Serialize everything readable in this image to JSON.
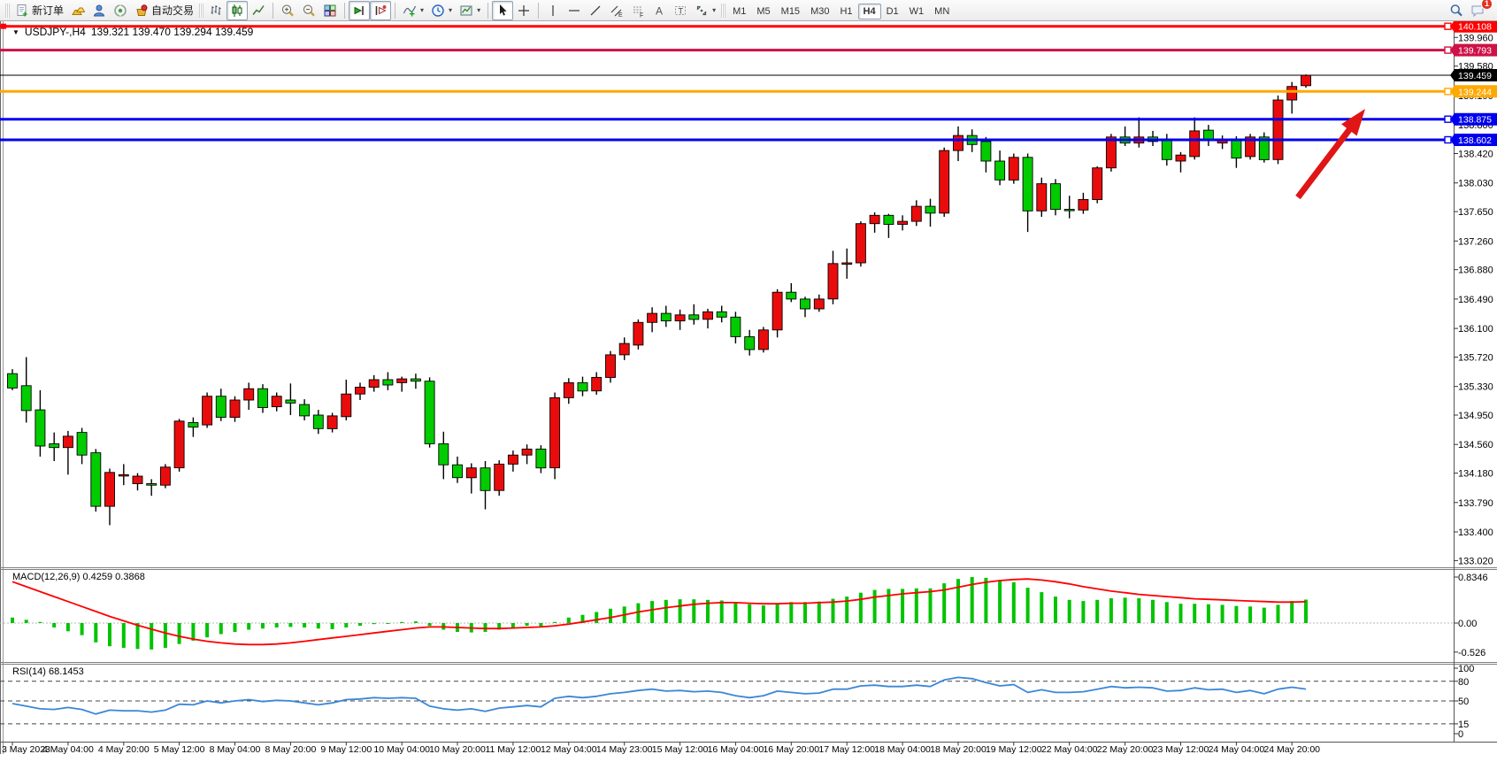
{
  "toolbar": {
    "new_order": "新订单",
    "auto_trading": "自动交易",
    "timeframes": [
      "M1",
      "M5",
      "M15",
      "M30",
      "H1",
      "H4",
      "D1",
      "W1",
      "MN"
    ],
    "active_timeframe": "H4",
    "notification_count": "1"
  },
  "chart_header": {
    "symbol": "USDJPY-,H4",
    "ohlc": "139.321 139.470 139.294 139.459"
  },
  "indicator_labels": {
    "macd": "MACD(12,26,9) 0.4259 0.3868",
    "rsi": "RSI(14) 68.1453"
  },
  "price_scale_ticks": [
    "139.960",
    "139.580",
    "139.190",
    "138.800",
    "138.420",
    "138.030",
    "137.650",
    "137.260",
    "136.880",
    "136.490",
    "136.100",
    "135.720",
    "135.330",
    "134.950",
    "134.560",
    "134.180",
    "133.790",
    "133.400",
    "133.020"
  ],
  "macd_scale": [
    "0.8346",
    "0.00",
    "-0.526"
  ],
  "rsi_scale": [
    "100",
    "80",
    "50",
    "15",
    "0"
  ],
  "rsi_levels": [
    80,
    50,
    15
  ],
  "price_lines": [
    {
      "label": "140.108",
      "price": 140.108,
      "color": "#ff0000",
      "width": 3,
      "handle": true,
      "current": false
    },
    {
      "label": "139.793",
      "price": 139.793,
      "color": "#ce1146",
      "width": 3,
      "handle": true,
      "current": false
    },
    {
      "label": "139.459",
      "price": 139.459,
      "color": "#000000",
      "width": 1,
      "handle": false,
      "current": true
    },
    {
      "label": "139.244",
      "price": 139.244,
      "color": "#ffa800",
      "width": 3,
      "handle": true,
      "current": false
    },
    {
      "label": "138.875",
      "price": 138.875,
      "color": "#0000ee",
      "width": 3,
      "handle": true,
      "current": false
    },
    {
      "label": "138.602",
      "price": 138.602,
      "color": "#0000ee",
      "width": 3,
      "handle": true,
      "current": false
    }
  ],
  "time_axis": [
    "3 May 2023",
    "4 May 04:00",
    "4 May 20:00",
    "5 May 12:00",
    "8 May 04:00",
    "8 May 20:00",
    "9 May 12:00",
    "10 May 04:00",
    "10 May 20:00",
    "11 May 12:00",
    "12 May 04:00",
    "14 May 23:00",
    "15 May 12:00",
    "16 May 04:00",
    "16 May 20:00",
    "17 May 12:00",
    "18 May 04:00",
    "18 May 20:00",
    "19 May 12:00",
    "22 May 04:00",
    "22 May 20:00",
    "23 May 12:00",
    "24 May 04:00",
    "24 May 20:00"
  ],
  "annotation_arrow": {
    "from": [
      1467,
      223
    ],
    "to": [
      1543,
      123
    ],
    "color": "#e01515"
  },
  "chart_data": {
    "type": "candlestick",
    "symbol": "USDJPY-",
    "timeframe": "H4",
    "bull_color": "#ea0c0c",
    "bear_color": "#00cc00",
    "note": "bullish candles are red, bearish are green (CN convention)",
    "candles": [
      [
        135.5,
        135.56,
        135.28,
        135.31
      ],
      [
        135.34,
        135.72,
        134.85,
        135.01
      ],
      [
        135.02,
        135.28,
        134.4,
        134.54
      ],
      [
        134.57,
        134.72,
        134.34,
        134.52
      ],
      [
        134.52,
        134.74,
        134.16,
        134.67
      ],
      [
        134.72,
        134.78,
        134.3,
        134.42
      ],
      [
        134.45,
        134.5,
        133.67,
        133.74
      ],
      [
        133.74,
        134.24,
        133.49,
        134.19
      ],
      [
        134.16,
        134.3,
        134.02,
        134.16
      ],
      [
        134.04,
        134.18,
        133.95,
        134.14
      ],
      [
        134.04,
        134.1,
        133.88,
        134.02
      ],
      [
        134.02,
        134.3,
        133.98,
        134.26
      ],
      [
        134.25,
        134.9,
        134.2,
        134.87
      ],
      [
        134.85,
        134.92,
        134.66,
        134.79
      ],
      [
        134.82,
        135.25,
        134.78,
        135.2
      ],
      [
        135.2,
        135.3,
        134.87,
        134.92
      ],
      [
        134.92,
        135.2,
        134.86,
        135.15
      ],
      [
        135.15,
        135.38,
        135.02,
        135.3
      ],
      [
        135.3,
        135.36,
        134.98,
        135.05
      ],
      [
        135.06,
        135.25,
        135.0,
        135.2
      ],
      [
        135.15,
        135.37,
        134.95,
        135.11
      ],
      [
        135.09,
        135.16,
        134.88,
        134.94
      ],
      [
        134.95,
        135.02,
        134.7,
        134.77
      ],
      [
        134.77,
        134.98,
        134.72,
        134.94
      ],
      [
        134.93,
        135.42,
        134.88,
        135.23
      ],
      [
        135.23,
        135.38,
        135.15,
        135.32
      ],
      [
        135.32,
        135.48,
        135.26,
        135.42
      ],
      [
        135.42,
        135.52,
        135.28,
        135.35
      ],
      [
        135.38,
        135.46,
        135.26,
        135.43
      ],
      [
        135.43,
        135.5,
        135.3,
        135.4
      ],
      [
        135.4,
        135.45,
        134.52,
        134.57
      ],
      [
        134.57,
        134.73,
        134.1,
        134.29
      ],
      [
        134.29,
        134.4,
        134.05,
        134.12
      ],
      [
        134.12,
        134.31,
        133.91,
        134.25
      ],
      [
        134.25,
        134.34,
        133.7,
        133.95
      ],
      [
        133.95,
        134.35,
        133.88,
        134.3
      ],
      [
        134.3,
        134.48,
        134.2,
        134.42
      ],
      [
        134.42,
        134.56,
        134.3,
        134.5
      ],
      [
        134.5,
        134.55,
        134.18,
        134.25
      ],
      [
        134.25,
        135.25,
        134.1,
        135.18
      ],
      [
        135.18,
        135.44,
        135.1,
        135.38
      ],
      [
        135.38,
        135.46,
        135.2,
        135.27
      ],
      [
        135.27,
        135.52,
        135.22,
        135.45
      ],
      [
        135.45,
        135.8,
        135.38,
        135.75
      ],
      [
        135.75,
        135.98,
        135.68,
        135.9
      ],
      [
        135.88,
        136.22,
        135.82,
        136.18
      ],
      [
        136.18,
        136.38,
        136.05,
        136.3
      ],
      [
        136.3,
        136.4,
        136.12,
        136.2
      ],
      [
        136.2,
        136.35,
        136.08,
        136.28
      ],
      [
        136.28,
        136.42,
        136.15,
        136.22
      ],
      [
        136.22,
        136.36,
        136.1,
        136.32
      ],
      [
        136.32,
        136.4,
        136.18,
        136.25
      ],
      [
        136.25,
        136.32,
        135.9,
        135.99
      ],
      [
        135.99,
        136.08,
        135.74,
        135.82
      ],
      [
        135.82,
        136.12,
        135.78,
        136.08
      ],
      [
        136.08,
        136.62,
        135.98,
        136.58
      ],
      [
        136.58,
        136.7,
        136.45,
        136.49
      ],
      [
        136.49,
        136.52,
        136.25,
        136.36
      ],
      [
        136.36,
        136.55,
        136.32,
        136.49
      ],
      [
        136.49,
        137.13,
        136.42,
        136.96
      ],
      [
        136.96,
        137.16,
        136.76,
        136.97
      ],
      [
        136.97,
        137.52,
        136.92,
        137.49
      ],
      [
        137.49,
        137.64,
        137.37,
        137.6
      ],
      [
        137.6,
        137.62,
        137.3,
        137.48
      ],
      [
        137.48,
        137.6,
        137.4,
        137.52
      ],
      [
        137.52,
        137.8,
        137.46,
        137.72
      ],
      [
        137.72,
        137.82,
        137.45,
        137.63
      ],
      [
        137.63,
        138.5,
        137.58,
        138.46
      ],
      [
        138.46,
        138.78,
        138.32,
        138.66
      ],
      [
        138.66,
        138.74,
        138.44,
        138.54
      ],
      [
        138.58,
        138.64,
        138.17,
        138.32
      ],
      [
        138.32,
        138.46,
        138.0,
        138.07
      ],
      [
        138.07,
        138.42,
        138.02,
        138.37
      ],
      [
        138.37,
        138.42,
        137.38,
        137.66
      ],
      [
        137.66,
        138.1,
        137.58,
        138.02
      ],
      [
        138.02,
        138.08,
        137.6,
        137.68
      ],
      [
        137.68,
        137.86,
        137.56,
        137.67
      ],
      [
        137.67,
        137.9,
        137.62,
        137.81
      ],
      [
        137.81,
        138.25,
        137.76,
        138.23
      ],
      [
        138.23,
        138.68,
        138.18,
        138.64
      ],
      [
        138.64,
        138.78,
        138.52,
        138.56
      ],
      [
        138.56,
        138.9,
        138.5,
        138.64
      ],
      [
        138.64,
        138.72,
        138.52,
        138.58
      ],
      [
        138.6,
        138.68,
        138.26,
        138.34
      ],
      [
        138.32,
        138.44,
        138.17,
        138.4
      ],
      [
        138.38,
        138.9,
        138.34,
        138.72
      ],
      [
        138.73,
        138.8,
        138.52,
        138.6
      ],
      [
        138.56,
        138.66,
        138.48,
        138.61
      ],
      [
        138.61,
        138.65,
        138.23,
        138.36
      ],
      [
        138.38,
        138.68,
        138.34,
        138.64
      ],
      [
        138.64,
        138.7,
        138.3,
        138.34
      ],
      [
        138.34,
        139.19,
        138.28,
        139.13
      ],
      [
        139.13,
        139.37,
        138.95,
        139.31
      ],
      [
        139.321,
        139.47,
        139.294,
        139.459
      ]
    ],
    "macd": {
      "params": "12,26,9",
      "main_value": 0.4259,
      "signal_value": 0.3868,
      "histogram": [
        0.1,
        0.06,
        0.02,
        -0.08,
        -0.15,
        -0.22,
        -0.35,
        -0.42,
        -0.45,
        -0.47,
        -0.48,
        -0.45,
        -0.38,
        -0.32,
        -0.26,
        -0.2,
        -0.16,
        -0.12,
        -0.1,
        -0.08,
        -0.07,
        -0.08,
        -0.1,
        -0.11,
        -0.08,
        -0.05,
        -0.02,
        0.0,
        0.02,
        0.03,
        -0.05,
        -0.12,
        -0.16,
        -0.17,
        -0.16,
        -0.12,
        -0.08,
        -0.05,
        -0.06,
        0.02,
        0.1,
        0.15,
        0.2,
        0.26,
        0.3,
        0.36,
        0.4,
        0.42,
        0.43,
        0.43,
        0.42,
        0.41,
        0.38,
        0.34,
        0.32,
        0.36,
        0.38,
        0.38,
        0.39,
        0.44,
        0.48,
        0.55,
        0.6,
        0.62,
        0.62,
        0.63,
        0.63,
        0.72,
        0.8,
        0.8346,
        0.82,
        0.78,
        0.74,
        0.64,
        0.56,
        0.48,
        0.42,
        0.4,
        0.42,
        0.45,
        0.46,
        0.45,
        0.42,
        0.38,
        0.35,
        0.35,
        0.34,
        0.33,
        0.31,
        0.3,
        0.28,
        0.33,
        0.4,
        0.4259
      ],
      "signal": [
        0.75,
        0.66,
        0.57,
        0.48,
        0.39,
        0.3,
        0.21,
        0.12,
        0.04,
        -0.04,
        -0.11,
        -0.18,
        -0.24,
        -0.29,
        -0.33,
        -0.36,
        -0.38,
        -0.39,
        -0.39,
        -0.38,
        -0.36,
        -0.33,
        -0.3,
        -0.27,
        -0.24,
        -0.21,
        -0.18,
        -0.15,
        -0.12,
        -0.09,
        -0.07,
        -0.07,
        -0.08,
        -0.09,
        -0.1,
        -0.1,
        -0.09,
        -0.08,
        -0.07,
        -0.05,
        -0.02,
        0.02,
        0.06,
        0.1,
        0.15,
        0.2,
        0.24,
        0.28,
        0.31,
        0.34,
        0.36,
        0.37,
        0.37,
        0.36,
        0.35,
        0.35,
        0.36,
        0.36,
        0.37,
        0.38,
        0.4,
        0.43,
        0.47,
        0.5,
        0.53,
        0.55,
        0.57,
        0.6,
        0.65,
        0.7,
        0.74,
        0.77,
        0.79,
        0.8,
        0.78,
        0.75,
        0.71,
        0.66,
        0.62,
        0.58,
        0.55,
        0.52,
        0.5,
        0.48,
        0.46,
        0.44,
        0.43,
        0.42,
        0.41,
        0.4,
        0.39,
        0.38,
        0.38,
        0.3868
      ],
      "hist_color": "#00c400",
      "signal_color": "#ff0000",
      "ylim": [
        -0.526,
        0.8346
      ]
    },
    "rsi": {
      "period": 14,
      "value": 68.1453,
      "values": [
        46,
        42,
        38,
        37,
        40,
        37,
        30,
        36,
        35,
        35,
        33,
        36,
        45,
        44,
        50,
        47,
        50,
        52,
        49,
        51,
        50,
        47,
        44,
        47,
        52,
        53,
        55,
        54,
        55,
        54,
        42,
        38,
        36,
        38,
        34,
        39,
        41,
        43,
        41,
        54,
        57,
        55,
        57,
        61,
        63,
        66,
        68,
        65,
        66,
        64,
        65,
        63,
        58,
        55,
        58,
        65,
        63,
        61,
        62,
        68,
        68,
        73,
        74,
        72,
        72,
        74,
        72,
        82,
        86,
        84,
        78,
        73,
        75,
        63,
        67,
        63,
        63,
        64,
        68,
        72,
        70,
        71,
        70,
        65,
        66,
        70,
        67,
        68,
        63,
        66,
        61,
        68,
        71,
        68.15
      ],
      "color": "#3a87d8",
      "ylim": [
        0,
        100
      ]
    }
  }
}
